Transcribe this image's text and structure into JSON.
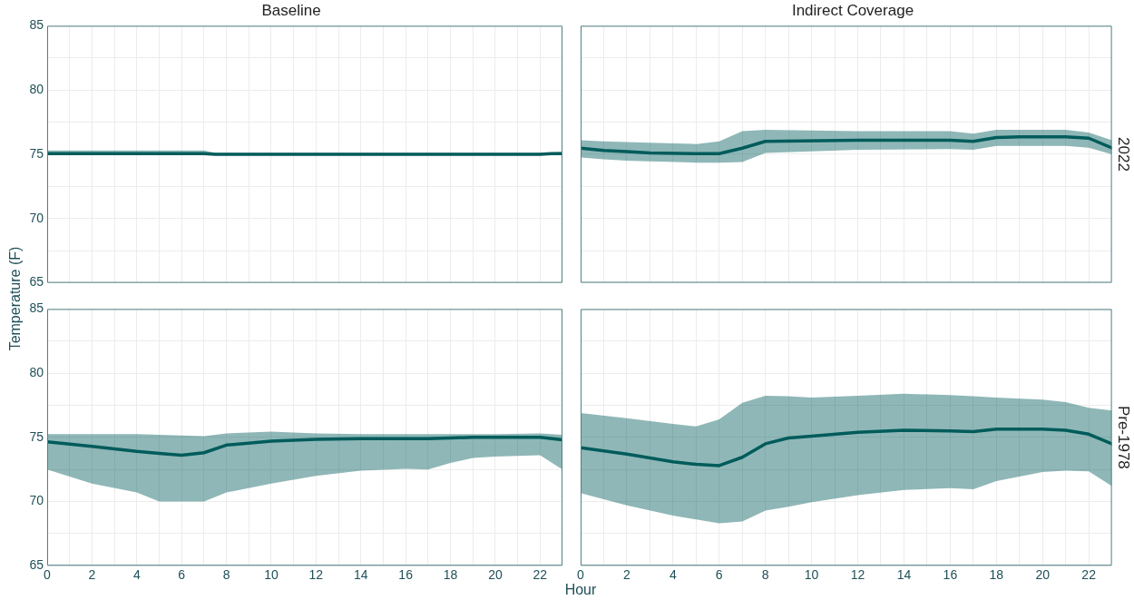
{
  "chart_data": [
    {
      "type": "line",
      "title": "Baseline",
      "ylabel": "Temperature (F)",
      "xlim": [
        0,
        23
      ],
      "ylim": [
        65,
        85
      ],
      "grid": true,
      "marker": "none",
      "tick_labels": "y",
      "xticks": [
        0,
        {
          "value": 1,
          "label": null
        },
        2,
        {
          "value": 3,
          "label": null
        },
        4,
        {
          "value": 5,
          "label": null
        },
        6,
        {
          "value": 7,
          "label": null
        },
        8,
        {
          "value": 9,
          "label": null
        },
        10,
        {
          "value": 11,
          "label": null
        },
        12,
        {
          "value": 13,
          "label": null
        },
        14,
        {
          "value": 15,
          "label": null
        },
        16,
        {
          "value": 17,
          "label": null
        },
        18,
        {
          "value": 19,
          "label": null
        },
        20,
        {
          "value": 21,
          "label": null
        },
        22
      ],
      "yticks": [
        65,
        {
          "value": 67.5,
          "label": null
        },
        70,
        {
          "value": 72.5,
          "label": null
        },
        75,
        {
          "value": 77.5,
          "label": null
        },
        80,
        {
          "value": 82.5,
          "label": null
        },
        85
      ],
      "series": [
        {
          "color": "#005c5c",
          "x": [
            0,
            7,
            7.5,
            22,
            22.5,
            23
          ],
          "values": [
            75.05,
            75.05,
            75.0,
            75.0,
            75.05,
            75.05
          ],
          "lower": [
            74.95,
            74.95,
            74.95,
            74.95,
            74.95,
            74.95
          ],
          "upper": [
            75.3,
            75.3,
            75.1,
            75.1,
            75.15,
            75.2
          ]
        }
      ]
    },
    {
      "type": "line",
      "title": "Indirect Coverage",
      "y2label": "2022",
      "xlim": [
        0,
        23
      ],
      "ylim": [
        65,
        85
      ],
      "grid": true,
      "marker": "none",
      "tick_labels": false,
      "xticks": [
        0,
        {
          "value": 1,
          "label": null
        },
        2,
        {
          "value": 3,
          "label": null
        },
        4,
        {
          "value": 5,
          "label": null
        },
        6,
        {
          "value": 7,
          "label": null
        },
        8,
        {
          "value": 9,
          "label": null
        },
        10,
        {
          "value": 11,
          "label": null
        },
        12,
        {
          "value": 13,
          "label": null
        },
        14,
        {
          "value": 15,
          "label": null
        },
        16,
        {
          "value": 17,
          "label": null
        },
        18,
        {
          "value": 19,
          "label": null
        },
        20,
        {
          "value": 21,
          "label": null
        },
        22
      ],
      "yticks": [
        65,
        {
          "value": 67.5,
          "label": null
        },
        70,
        {
          "value": 72.5,
          "label": null
        },
        75,
        {
          "value": 77.5,
          "label": null
        },
        80,
        {
          "value": 82.5,
          "label": null
        },
        85
      ],
      "series": [
        {
          "color": "#005c5c",
          "x": [
            0,
            1,
            2,
            3,
            5,
            6,
            7,
            8,
            12,
            16,
            17,
            18,
            19,
            21,
            22,
            23
          ],
          "values": [
            75.47,
            75.3,
            75.2,
            75.1,
            75.05,
            75.05,
            75.47,
            76.0,
            76.1,
            76.1,
            76.0,
            76.3,
            76.35,
            76.35,
            76.25,
            75.5
          ],
          "lower": [
            74.75,
            74.6,
            74.5,
            74.45,
            74.35,
            74.35,
            74.4,
            75.1,
            75.35,
            75.4,
            75.35,
            75.65,
            75.65,
            75.65,
            75.5,
            75.0
          ],
          "upper": [
            76.1,
            76.0,
            75.95,
            75.9,
            75.8,
            76.0,
            76.8,
            76.9,
            76.8,
            76.8,
            76.6,
            76.9,
            76.9,
            76.9,
            76.7,
            76.1
          ]
        }
      ]
    },
    {
      "type": "line",
      "xlabel": "Hour",
      "xlim": [
        0,
        23
      ],
      "ylim": [
        65,
        85
      ],
      "grid": true,
      "marker": "none",
      "xticks": [
        0,
        {
          "value": 1,
          "label": null
        },
        2,
        {
          "value": 3,
          "label": null
        },
        4,
        {
          "value": 5,
          "label": null
        },
        6,
        {
          "value": 7,
          "label": null
        },
        8,
        {
          "value": 9,
          "label": null
        },
        10,
        {
          "value": 11,
          "label": null
        },
        12,
        {
          "value": 13,
          "label": null
        },
        14,
        {
          "value": 15,
          "label": null
        },
        16,
        {
          "value": 17,
          "label": null
        },
        18,
        {
          "value": 19,
          "label": null
        },
        20,
        {
          "value": 21,
          "label": null
        },
        22
      ],
      "yticks": [
        65,
        {
          "value": 67.5,
          "label": null
        },
        70,
        {
          "value": 72.5,
          "label": null
        },
        75,
        {
          "value": 77.5,
          "label": null
        },
        80,
        {
          "value": 82.5,
          "label": null
        },
        85
      ],
      "series": [
        {
          "color": "#005c5c",
          "x": [
            0,
            2,
            4,
            5,
            6,
            7,
            8,
            10,
            12,
            14,
            16,
            17,
            18,
            19,
            20,
            22,
            23
          ],
          "values": [
            74.65,
            74.3,
            73.9,
            73.75,
            73.6,
            73.8,
            74.4,
            74.7,
            74.85,
            74.9,
            74.9,
            74.9,
            74.95,
            75.0,
            75.0,
            75.0,
            74.8
          ],
          "lower": [
            72.5,
            71.4,
            70.7,
            70.0,
            70.0,
            70.0,
            70.7,
            71.4,
            72.0,
            72.4,
            72.55,
            72.5,
            73.0,
            73.4,
            73.5,
            73.6,
            72.5
          ],
          "upper": [
            75.25,
            75.25,
            75.25,
            75.2,
            75.15,
            75.1,
            75.3,
            75.45,
            75.3,
            75.25,
            75.25,
            75.25,
            75.25,
            75.25,
            75.25,
            75.3,
            75.2
          ]
        }
      ]
    },
    {
      "type": "line",
      "y2label": "Pre-1978",
      "xlim": [
        0,
        23
      ],
      "ylim": [
        65,
        85
      ],
      "grid": true,
      "marker": "none",
      "tick_labels": "x",
      "xticks": [
        0,
        {
          "value": 1,
          "label": null
        },
        2,
        {
          "value": 3,
          "label": null
        },
        4,
        {
          "value": 5,
          "label": null
        },
        6,
        {
          "value": 7,
          "label": null
        },
        8,
        {
          "value": 9,
          "label": null
        },
        10,
        {
          "value": 11,
          "label": null
        },
        12,
        {
          "value": 13,
          "label": null
        },
        14,
        {
          "value": 15,
          "label": null
        },
        16,
        {
          "value": 17,
          "label": null
        },
        18,
        {
          "value": 19,
          "label": null
        },
        20,
        {
          "value": 21,
          "label": null
        },
        22
      ],
      "yticks": [
        65,
        {
          "value": 67.5,
          "label": null
        },
        70,
        {
          "value": 72.5,
          "label": null
        },
        75,
        {
          "value": 77.5,
          "label": null
        },
        80,
        {
          "value": 82.5,
          "label": null
        },
        85
      ],
      "series": [
        {
          "color": "#005c5c",
          "x": [
            0,
            2,
            4,
            5,
            6,
            7,
            8,
            9,
            10,
            12,
            14,
            16,
            17,
            18,
            20,
            21,
            22,
            23
          ],
          "values": [
            74.2,
            73.7,
            73.1,
            72.9,
            72.8,
            73.45,
            74.5,
            74.95,
            75.1,
            75.4,
            75.55,
            75.5,
            75.45,
            75.65,
            75.65,
            75.55,
            75.25,
            74.5
          ],
          "lower": [
            70.65,
            69.7,
            68.9,
            68.6,
            68.3,
            68.45,
            69.3,
            69.6,
            69.95,
            70.5,
            70.9,
            71.05,
            70.95,
            71.6,
            72.3,
            72.4,
            72.35,
            71.2
          ],
          "upper": [
            76.9,
            76.5,
            76.05,
            75.85,
            76.4,
            77.7,
            78.25,
            78.2,
            78.1,
            78.25,
            78.4,
            78.3,
            78.2,
            78.1,
            77.95,
            77.75,
            77.3,
            77.1
          ]
        }
      ]
    }
  ]
}
